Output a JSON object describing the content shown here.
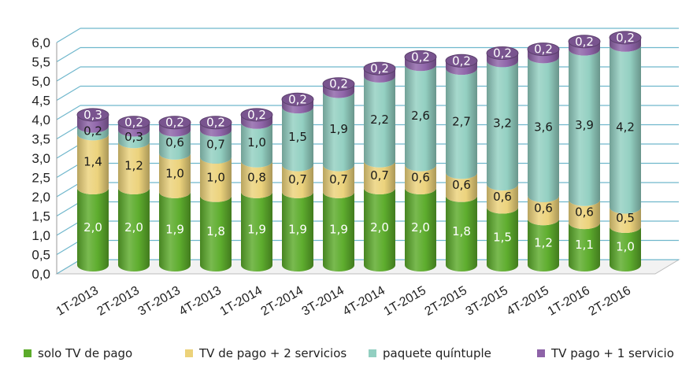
{
  "chart_data": {
    "type": "bar",
    "stacked": true,
    "style": "3d-cylinder",
    "categories": [
      "1T-2013",
      "2T-2013",
      "3T-2013",
      "4T-2013",
      "1T-2014",
      "2T-2014",
      "3T-2014",
      "4T-2014",
      "1T-2015",
      "2T-2015",
      "3T-2015",
      "4T-2015",
      "1T-2016",
      "2T-2016"
    ],
    "series": [
      {
        "name": "solo TV de pago",
        "color": "#5bab2a",
        "values": [
          2.0,
          2.0,
          1.9,
          1.8,
          1.9,
          1.9,
          1.9,
          2.0,
          2.0,
          1.8,
          1.5,
          1.2,
          1.1,
          1.0
        ],
        "labels": [
          "2,0",
          "2,0",
          "1,9",
          "1,8",
          "1,9",
          "1,9",
          "1,9",
          "2,0",
          "2,0",
          "1,8",
          "1,5",
          "1,2",
          "1,1",
          "1,0"
        ]
      },
      {
        "name": "TV de pago + 2 servicios",
        "color": "#ecd27a",
        "values": [
          1.4,
          1.2,
          1.0,
          1.0,
          0.8,
          0.7,
          0.7,
          0.7,
          0.6,
          0.6,
          0.6,
          0.6,
          0.6,
          0.5
        ],
        "labels": [
          "1,4",
          "1,2",
          "1,0",
          "1,0",
          "0,8",
          "0,7",
          "0,7",
          "0,7",
          "0,6",
          "0,6",
          "0,6",
          "0,6",
          "0,6",
          "0,5"
        ]
      },
      {
        "name": "paquete quíntuple",
        "color": "#92cfc1",
        "values": [
          0.2,
          0.3,
          0.6,
          0.7,
          1.0,
          1.5,
          1.9,
          2.2,
          2.6,
          2.7,
          3.2,
          3.6,
          3.9,
          4.2
        ],
        "labels": [
          "0,2",
          "0,3",
          "0,6",
          "0,7",
          "1,0",
          "1,5",
          "1,9",
          "2,2",
          "2,6",
          "2,7",
          "3,2",
          "3,6",
          "3,9",
          "4,2"
        ]
      },
      {
        "name": "TV pago + 1 servicio",
        "color": "#8e63a8",
        "values": [
          0.3,
          0.2,
          0.2,
          0.2,
          0.2,
          0.2,
          0.2,
          0.2,
          0.2,
          0.2,
          0.2,
          0.2,
          0.2,
          0.2
        ],
        "labels": [
          "0,3",
          "0,2",
          "0,2",
          "0,2",
          "0,2",
          "0,2",
          "0,2",
          "0,2",
          "0,2",
          "0,2",
          "0,2",
          "0,2",
          "0,2",
          "0,2"
        ]
      }
    ],
    "y_ticks": [
      "0,0",
      "0,5",
      "1,0",
      "1,5",
      "2,0",
      "2,5",
      "3,0",
      "3,5",
      "4,0",
      "4,5",
      "5,0",
      "5,5",
      "6,0"
    ],
    "ylim": [
      0,
      6.0
    ],
    "grid": true,
    "gridline_color": "#6fb7cc",
    "legend_position": "bottom",
    "title": "",
    "xlabel": "",
    "ylabel": ""
  }
}
